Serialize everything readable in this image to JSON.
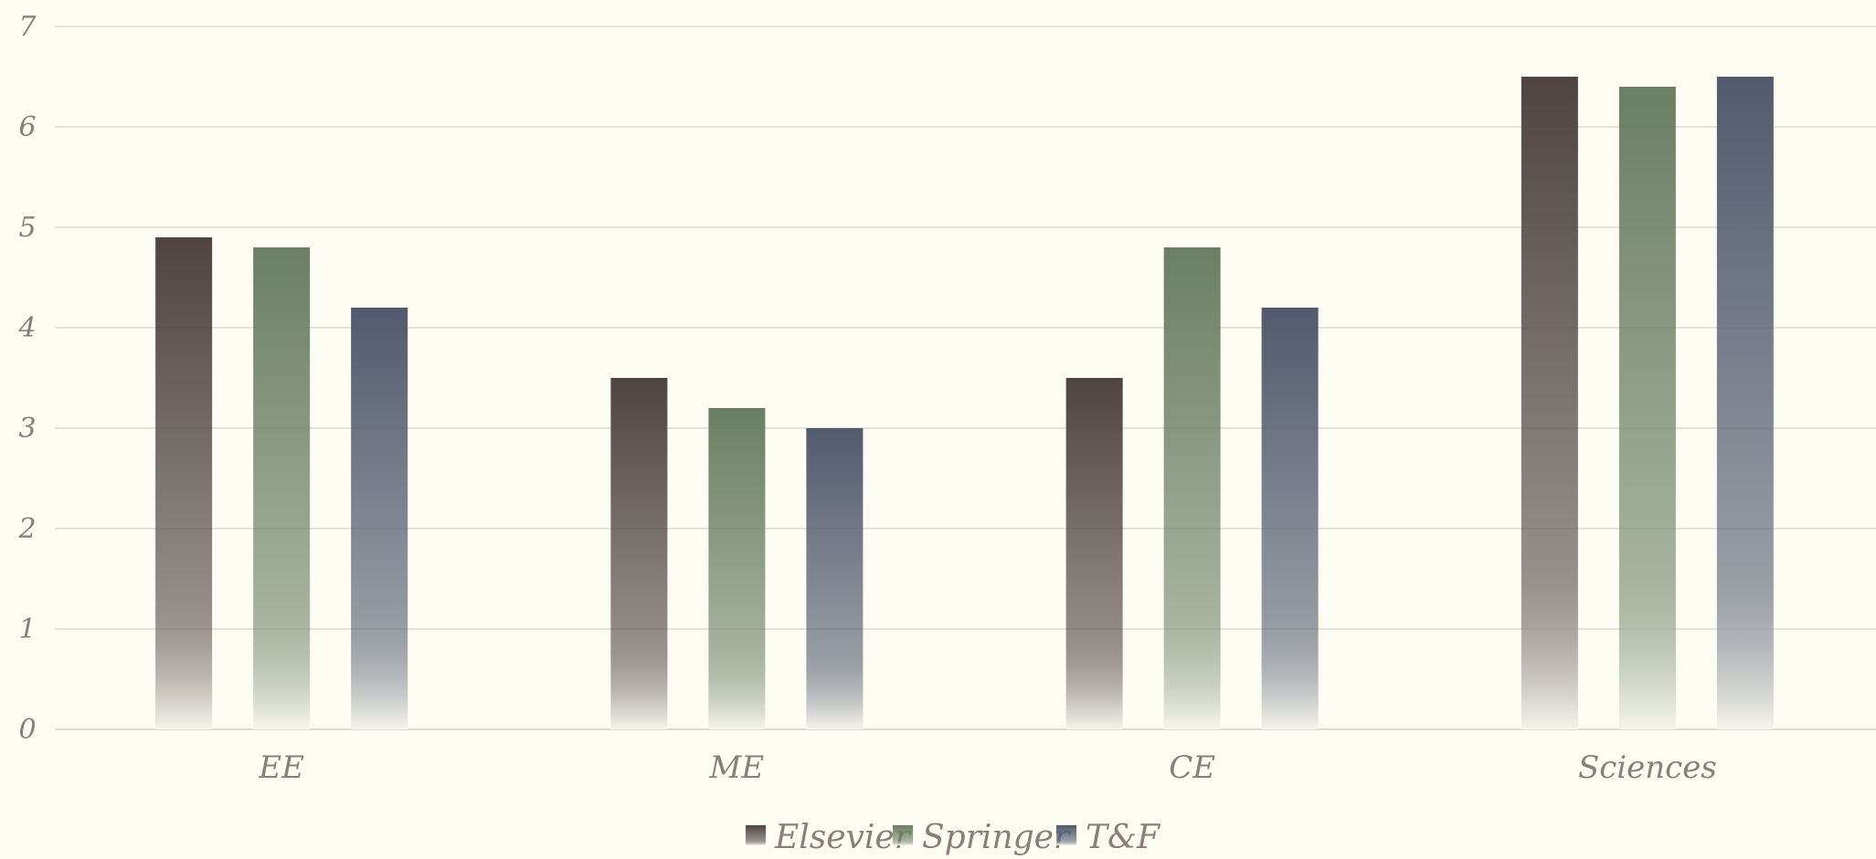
{
  "chart_data": {
    "type": "bar",
    "title": "",
    "xlabel": "",
    "ylabel": "",
    "categories": [
      "EE",
      "ME",
      "CE",
      "Sciences"
    ],
    "series": [
      {
        "name": "Elsevier",
        "values": [
          4.9,
          3.5,
          3.5,
          6.5
        ]
      },
      {
        "name": "Springer",
        "values": [
          4.8,
          3.2,
          4.8,
          6.4
        ]
      },
      {
        "name": "T&F",
        "values": [
          4.2,
          3.0,
          4.2,
          6.5
        ]
      }
    ],
    "ylim": [
      0,
      7
    ],
    "yticks": [
      "0",
      "1",
      "2",
      "3",
      "4",
      "5",
      "6",
      "7"
    ],
    "grid": true,
    "legend_position": "bottom-center"
  },
  "colors": {
    "background": "#fdfdf3",
    "grid": "#dcdcd0",
    "Elsevier": "#4f4440",
    "Springer": "#6b7f63",
    "T&F": "#525a6d",
    "fade_end": "#f5f5ec"
  }
}
